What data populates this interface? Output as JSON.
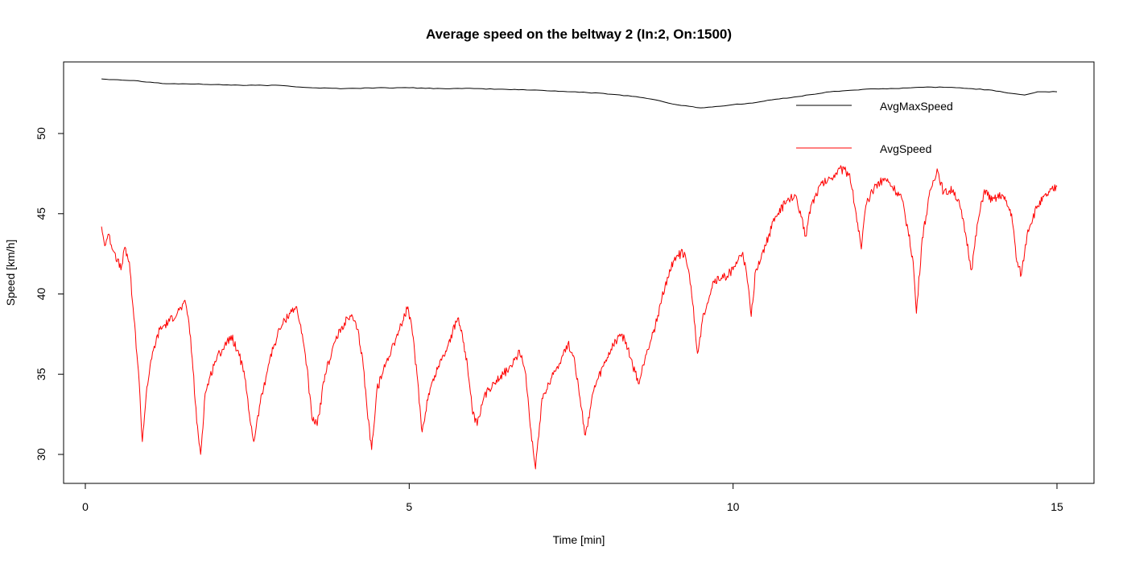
{
  "chart_data": {
    "type": "line",
    "title": "Average speed on the beltway 2 (In:2, On:1500)",
    "xlabel": "Time [min]",
    "ylabel": "Speed [km/h]",
    "xlim": [
      0,
      15
    ],
    "ylim": [
      29,
      54.2
    ],
    "xticks": [
      0,
      5,
      10,
      15
    ],
    "yticks": [
      30,
      35,
      40,
      45,
      50
    ],
    "grid": false,
    "legend_position": "top-right",
    "series": [
      {
        "name": "AvgMaxSpeed",
        "color": "#000000",
        "points": [
          [
            0.25,
            53.4
          ],
          [
            0.5,
            53.35
          ],
          [
            0.75,
            53.3
          ],
          [
            1.0,
            53.2
          ],
          [
            1.25,
            53.1
          ],
          [
            1.5,
            53.1
          ],
          [
            2.0,
            53.05
          ],
          [
            2.5,
            53.0
          ],
          [
            3.0,
            53.0
          ],
          [
            3.5,
            52.85
          ],
          [
            4.0,
            52.8
          ],
          [
            4.5,
            52.85
          ],
          [
            5.0,
            52.85
          ],
          [
            5.5,
            52.8
          ],
          [
            6.0,
            52.8
          ],
          [
            6.5,
            52.75
          ],
          [
            7.0,
            52.7
          ],
          [
            7.5,
            52.6
          ],
          [
            8.0,
            52.5
          ],
          [
            8.5,
            52.3
          ],
          [
            8.8,
            52.1
          ],
          [
            9.0,
            51.9
          ],
          [
            9.2,
            51.75
          ],
          [
            9.5,
            51.6
          ],
          [
            9.8,
            51.7
          ],
          [
            10.0,
            51.8
          ],
          [
            10.3,
            51.9
          ],
          [
            10.6,
            52.1
          ],
          [
            11.0,
            52.3
          ],
          [
            11.5,
            52.6
          ],
          [
            12.0,
            52.75
          ],
          [
            12.5,
            52.8
          ],
          [
            13.0,
            52.9
          ],
          [
            13.5,
            52.85
          ],
          [
            14.0,
            52.7
          ],
          [
            14.3,
            52.5
          ],
          [
            14.5,
            52.4
          ],
          [
            14.7,
            52.6
          ],
          [
            15.0,
            52.6
          ]
        ]
      },
      {
        "name": "AvgSpeed",
        "color": "#ff0000",
        "points": [
          [
            0.25,
            44.2
          ],
          [
            0.3,
            43.0
          ],
          [
            0.35,
            43.7
          ],
          [
            0.45,
            42.6
          ],
          [
            0.55,
            41.5
          ],
          [
            0.6,
            42.8
          ],
          [
            0.68,
            42.0
          ],
          [
            0.75,
            38.5
          ],
          [
            0.82,
            35.2
          ],
          [
            0.88,
            30.8
          ],
          [
            0.95,
            34.2
          ],
          [
            1.05,
            36.5
          ],
          [
            1.15,
            37.8
          ],
          [
            1.3,
            38.3
          ],
          [
            1.45,
            39.0
          ],
          [
            1.55,
            39.4
          ],
          [
            1.6,
            38.2
          ],
          [
            1.65,
            36.0
          ],
          [
            1.72,
            32.0
          ],
          [
            1.78,
            30.0
          ],
          [
            1.85,
            33.8
          ],
          [
            2.0,
            35.8
          ],
          [
            2.15,
            36.8
          ],
          [
            2.25,
            37.4
          ],
          [
            2.35,
            36.5
          ],
          [
            2.45,
            35.2
          ],
          [
            2.52,
            32.8
          ],
          [
            2.6,
            30.8
          ],
          [
            2.7,
            33.2
          ],
          [
            2.85,
            36.0
          ],
          [
            3.0,
            37.8
          ],
          [
            3.15,
            38.8
          ],
          [
            3.25,
            39.2
          ],
          [
            3.35,
            37.5
          ],
          [
            3.42,
            35.5
          ],
          [
            3.5,
            32.2
          ],
          [
            3.58,
            31.8
          ],
          [
            3.7,
            35.0
          ],
          [
            3.85,
            37.0
          ],
          [
            4.0,
            38.2
          ],
          [
            4.1,
            38.6
          ],
          [
            4.2,
            37.8
          ],
          [
            4.28,
            36.0
          ],
          [
            4.35,
            32.8
          ],
          [
            4.42,
            30.3
          ],
          [
            4.5,
            34.0
          ],
          [
            4.65,
            35.8
          ],
          [
            4.8,
            37.3
          ],
          [
            4.9,
            38.3
          ],
          [
            4.98,
            39.2
          ],
          [
            5.05,
            37.5
          ],
          [
            5.12,
            35.0
          ],
          [
            5.2,
            31.4
          ],
          [
            5.3,
            33.8
          ],
          [
            5.45,
            35.5
          ],
          [
            5.6,
            36.8
          ],
          [
            5.75,
            38.5
          ],
          [
            5.82,
            37.5
          ],
          [
            5.9,
            35.5
          ],
          [
            5.98,
            32.5
          ],
          [
            6.05,
            31.8
          ],
          [
            6.15,
            33.5
          ],
          [
            6.3,
            34.5
          ],
          [
            6.45,
            35.0
          ],
          [
            6.6,
            35.6
          ],
          [
            6.7,
            36.5
          ],
          [
            6.8,
            35.0
          ],
          [
            6.88,
            31.5
          ],
          [
            6.95,
            29.1
          ],
          [
            7.05,
            33.5
          ],
          [
            7.2,
            34.8
          ],
          [
            7.35,
            36.0
          ],
          [
            7.45,
            36.9
          ],
          [
            7.55,
            36.0
          ],
          [
            7.65,
            33.0
          ],
          [
            7.72,
            31.2
          ],
          [
            7.85,
            34.0
          ],
          [
            8.0,
            35.5
          ],
          [
            8.15,
            36.8
          ],
          [
            8.25,
            37.5
          ],
          [
            8.35,
            37.0
          ],
          [
            8.45,
            35.5
          ],
          [
            8.55,
            34.4
          ],
          [
            8.65,
            36.2
          ],
          [
            8.8,
            38.0
          ],
          [
            8.95,
            40.5
          ],
          [
            9.1,
            42.3
          ],
          [
            9.25,
            42.6
          ],
          [
            9.35,
            40.5
          ],
          [
            9.45,
            36.3
          ],
          [
            9.55,
            38.8
          ],
          [
            9.7,
            40.8
          ],
          [
            9.85,
            41.0
          ],
          [
            10.0,
            41.5
          ],
          [
            10.15,
            42.6
          ],
          [
            10.22,
            40.8
          ],
          [
            10.28,
            38.6
          ],
          [
            10.35,
            41.5
          ],
          [
            10.5,
            43.0
          ],
          [
            10.65,
            44.8
          ],
          [
            10.8,
            45.6
          ],
          [
            10.95,
            46.2
          ],
          [
            11.05,
            44.8
          ],
          [
            11.12,
            43.6
          ],
          [
            11.2,
            45.5
          ],
          [
            11.35,
            46.8
          ],
          [
            11.5,
            47.2
          ],
          [
            11.65,
            47.8
          ],
          [
            11.8,
            47.5
          ],
          [
            11.9,
            45.0
          ],
          [
            11.98,
            42.8
          ],
          [
            12.05,
            45.5
          ],
          [
            12.2,
            46.8
          ],
          [
            12.35,
            47.2
          ],
          [
            12.5,
            46.5
          ],
          [
            12.6,
            46.0
          ],
          [
            12.7,
            44.0
          ],
          [
            12.78,
            42.0
          ],
          [
            12.83,
            38.8
          ],
          [
            12.92,
            43.5
          ],
          [
            13.05,
            46.5
          ],
          [
            13.15,
            47.8
          ],
          [
            13.25,
            46.3
          ],
          [
            13.4,
            46.5
          ],
          [
            13.5,
            45.5
          ],
          [
            13.6,
            43.5
          ],
          [
            13.68,
            41.5
          ],
          [
            13.78,
            44.5
          ],
          [
            13.88,
            46.5
          ],
          [
            14.0,
            45.8
          ],
          [
            14.15,
            46.2
          ],
          [
            14.3,
            45.0
          ],
          [
            14.38,
            42.0
          ],
          [
            14.45,
            41.2
          ],
          [
            14.55,
            44.0
          ],
          [
            14.7,
            45.5
          ],
          [
            14.85,
            46.2
          ],
          [
            15.0,
            46.7
          ]
        ]
      }
    ]
  }
}
